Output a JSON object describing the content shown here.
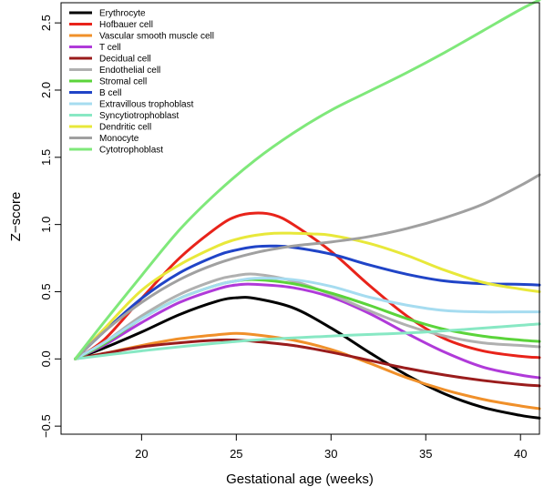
{
  "chart_data": {
    "type": "line",
    "title": "",
    "xlabel": "Gestational age (weeks)",
    "ylabel": "Z−score",
    "xlim": [
      16.5,
      41
    ],
    "ylim": [
      -0.5,
      2.65
    ],
    "xticks": [
      20,
      25,
      30,
      35,
      40
    ],
    "yticks": [
      -0.5,
      0.0,
      0.5,
      1.0,
      1.5,
      2.0,
      2.5
    ],
    "ytick_labels": [
      "−0.5",
      "0.0",
      "0.5",
      "1.0",
      "1.5",
      "2.0",
      "2.5"
    ],
    "grid": false,
    "legend_position": "top-left",
    "series": [
      {
        "name": "Erythrocyte",
        "color": "#000000",
        "x": [
          16.5,
          18,
          20,
          22,
          24,
          25,
          26,
          28,
          30,
          32,
          34,
          36,
          38,
          40,
          41
        ],
        "y": [
          0,
          0.08,
          0.2,
          0.33,
          0.43,
          0.455,
          0.45,
          0.38,
          0.23,
          0.05,
          -0.12,
          -0.26,
          -0.36,
          -0.42,
          -0.44
        ]
      },
      {
        "name": "Hofbauer cell",
        "color": "#e8231a",
        "x": [
          16.5,
          18,
          20,
          22,
          24,
          25,
          26,
          27,
          28,
          30,
          32,
          34,
          36,
          38,
          40,
          41
        ],
        "y": [
          0,
          0.14,
          0.45,
          0.75,
          0.98,
          1.06,
          1.085,
          1.07,
          1.0,
          0.8,
          0.55,
          0.32,
          0.15,
          0.06,
          0.02,
          0.01
        ]
      },
      {
        "name": "Vascular smooth muscle cell",
        "color": "#f0902a",
        "x": [
          16.5,
          18,
          20,
          22,
          24,
          25,
          26,
          28,
          30,
          32,
          34,
          36,
          38,
          40,
          41
        ],
        "y": [
          0,
          0.04,
          0.1,
          0.15,
          0.18,
          0.19,
          0.18,
          0.14,
          0.07,
          -0.03,
          -0.14,
          -0.23,
          -0.3,
          -0.35,
          -0.37
        ]
      },
      {
        "name": "T cell",
        "color": "#b03ad9",
        "x": [
          16.5,
          18,
          20,
          22,
          24,
          25,
          26,
          28,
          30,
          32,
          34,
          36,
          38,
          40,
          41
        ],
        "y": [
          0,
          0.1,
          0.27,
          0.42,
          0.52,
          0.55,
          0.555,
          0.53,
          0.46,
          0.34,
          0.19,
          0.05,
          -0.06,
          -0.12,
          -0.14
        ]
      },
      {
        "name": "Decidual cell",
        "color": "#9a1c1c",
        "x": [
          16.5,
          18,
          20,
          22,
          24,
          25,
          26,
          28,
          30,
          32,
          34,
          36,
          38,
          40,
          41
        ],
        "y": [
          0,
          0.04,
          0.09,
          0.12,
          0.14,
          0.14,
          0.13,
          0.1,
          0.05,
          -0.01,
          -0.07,
          -0.12,
          -0.16,
          -0.19,
          -0.2
        ]
      },
      {
        "name": "Endothelial cell",
        "color": "#b0b0b0",
        "x": [
          16.5,
          18,
          20,
          22,
          24,
          25,
          26,
          28,
          30,
          32,
          34,
          36,
          38,
          40,
          41
        ],
        "y": [
          0,
          0.12,
          0.32,
          0.48,
          0.59,
          0.62,
          0.63,
          0.58,
          0.48,
          0.36,
          0.25,
          0.17,
          0.12,
          0.1,
          0.09
        ]
      },
      {
        "name": "Stromal cell",
        "color": "#5bd43a",
        "x": [
          16.5,
          18,
          20,
          22,
          24,
          25,
          26,
          28,
          30,
          32,
          34,
          36,
          38,
          40,
          41
        ],
        "y": [
          0,
          0.11,
          0.3,
          0.45,
          0.55,
          0.58,
          0.59,
          0.56,
          0.49,
          0.4,
          0.3,
          0.22,
          0.17,
          0.14,
          0.13
        ]
      },
      {
        "name": "B cell",
        "color": "#2044c7",
        "x": [
          16.5,
          18,
          20,
          22,
          24,
          25,
          26,
          27,
          28,
          30,
          32,
          34,
          36,
          38,
          40,
          41
        ],
        "y": [
          0,
          0.2,
          0.45,
          0.64,
          0.77,
          0.81,
          0.835,
          0.84,
          0.83,
          0.78,
          0.7,
          0.63,
          0.58,
          0.56,
          0.555,
          0.55
        ]
      },
      {
        "name": "Extravillous trophoblast",
        "color": "#a6dcf0",
        "x": [
          16.5,
          18,
          20,
          22,
          24,
          25,
          26,
          28,
          30,
          32,
          34,
          36,
          38,
          40,
          41
        ],
        "y": [
          0,
          0.12,
          0.3,
          0.45,
          0.55,
          0.58,
          0.6,
          0.59,
          0.54,
          0.46,
          0.4,
          0.36,
          0.35,
          0.35,
          0.35
        ]
      },
      {
        "name": "Syncytiotrophoblast",
        "color": "#88e8c4",
        "x": [
          16.5,
          20,
          25,
          30,
          35,
          41
        ],
        "y": [
          0,
          0.06,
          0.13,
          0.17,
          0.2,
          0.26
        ]
      },
      {
        "name": "Dendritic cell",
        "color": "#e8e83a",
        "x": [
          16.5,
          18,
          20,
          22,
          24,
          25,
          26,
          27,
          28,
          29,
          30,
          32,
          34,
          36,
          38,
          40,
          41
        ],
        "y": [
          0,
          0.22,
          0.51,
          0.7,
          0.84,
          0.89,
          0.92,
          0.935,
          0.935,
          0.93,
          0.92,
          0.86,
          0.77,
          0.66,
          0.57,
          0.52,
          0.5
        ]
      },
      {
        "name": "Monocyte",
        "color": "#a0a0a0",
        "x": [
          16.5,
          18,
          20,
          22,
          24,
          26,
          28,
          30,
          32,
          34,
          36,
          38,
          40,
          41
        ],
        "y": [
          0,
          0.2,
          0.42,
          0.59,
          0.71,
          0.79,
          0.84,
          0.87,
          0.91,
          0.97,
          1.05,
          1.15,
          1.29,
          1.37
        ]
      },
      {
        "name": "Cytotrophoblast",
        "color": "#7fe87a",
        "x": [
          16.5,
          18,
          20,
          22,
          24,
          26,
          28,
          30,
          32,
          34,
          36,
          38,
          40,
          41
        ],
        "y": [
          0,
          0.27,
          0.62,
          0.96,
          1.24,
          1.48,
          1.68,
          1.85,
          1.99,
          2.13,
          2.28,
          2.44,
          2.6,
          2.67
        ]
      }
    ]
  }
}
